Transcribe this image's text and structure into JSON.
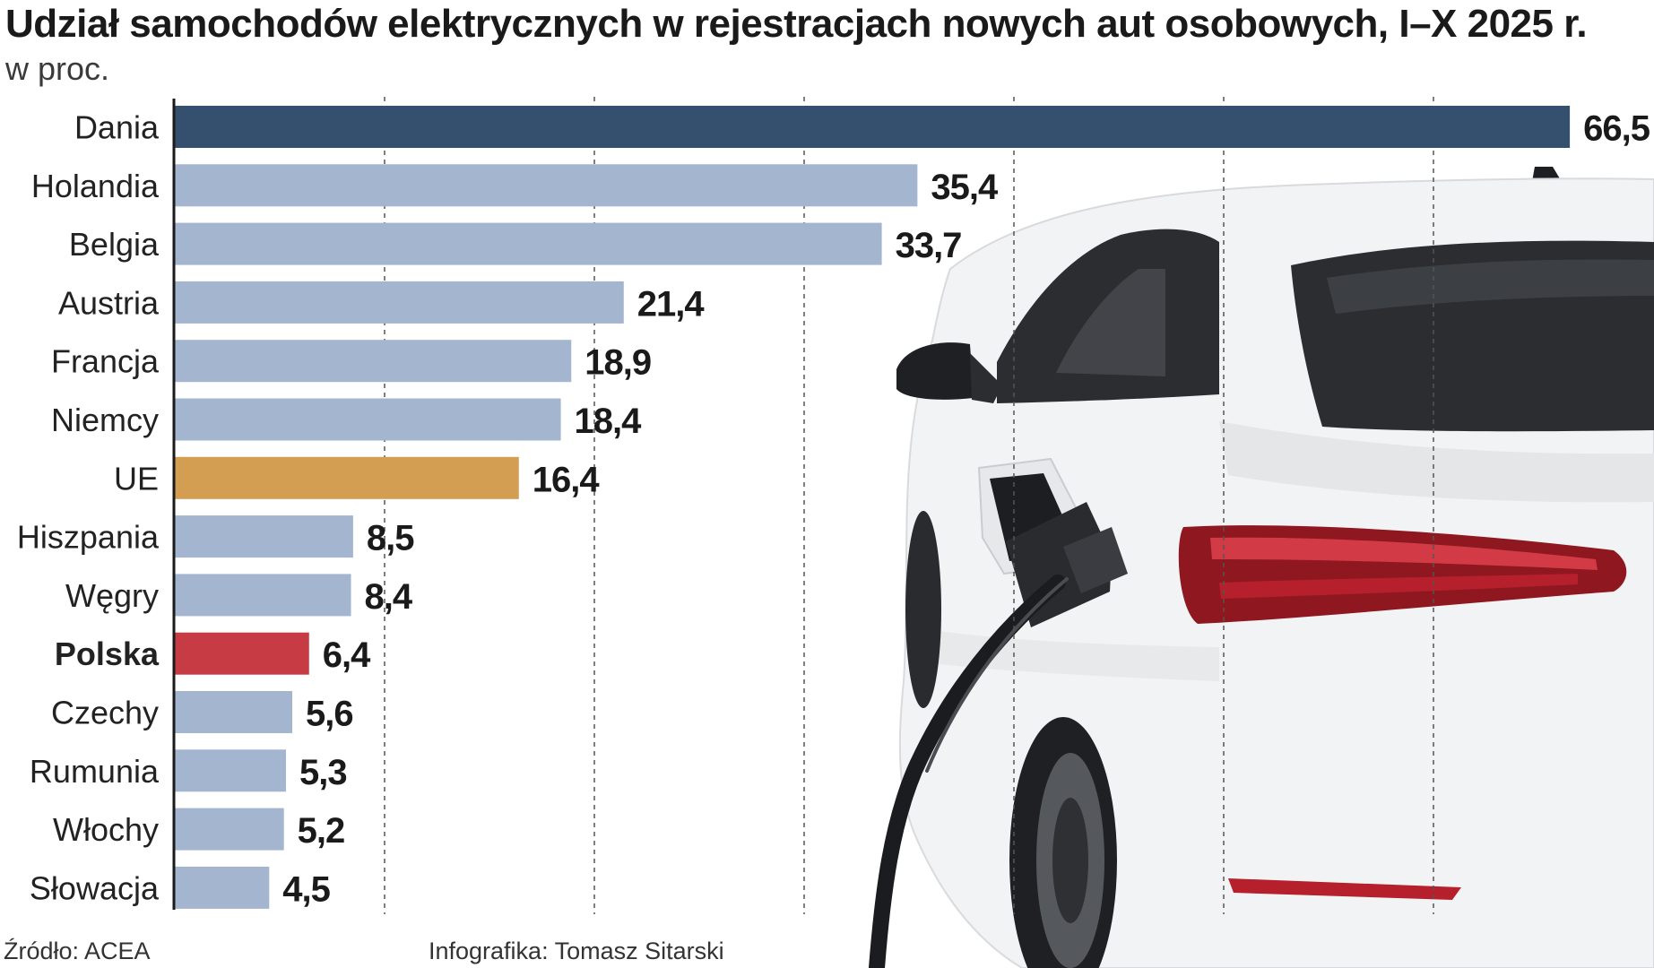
{
  "chart_data": {
    "type": "bar",
    "orientation": "horizontal",
    "title": "Udział samochodów elektrycznych w rejestracjach nowych aut osobowych, I–X 2025 r.",
    "subtitle": "w proc.",
    "categories": [
      "Dania",
      "Holandia",
      "Belgia",
      "Austria",
      "Francja",
      "Niemcy",
      "UE",
      "Hiszpania",
      "Węgry",
      "Polska",
      "Czechy",
      "Rumunia",
      "Włochy",
      "Słowacja"
    ],
    "values": [
      66.5,
      35.4,
      33.7,
      21.4,
      18.9,
      18.4,
      16.4,
      8.5,
      8.4,
      6.4,
      5.6,
      5.3,
      5.2,
      4.5
    ],
    "value_labels": [
      "66,5",
      "35,4",
      "33,7",
      "21,4",
      "18,9",
      "18,4",
      "16,4",
      "8,5",
      "8,4",
      "6,4",
      "5,6",
      "5,3",
      "5,2",
      "4,5"
    ],
    "bar_colors": [
      "#34506e",
      "#a3b5cf",
      "#a3b5cf",
      "#a3b5cf",
      "#a3b5cf",
      "#a3b5cf",
      "#d39d52",
      "#a3b5cf",
      "#a3b5cf",
      "#c73b44",
      "#a3b5cf",
      "#a3b5cf",
      "#a3b5cf",
      "#a3b5cf"
    ],
    "bold_categories": [
      "Polska"
    ],
    "xlim": [
      0,
      70
    ],
    "gridlines": [
      10,
      20,
      30,
      40,
      50,
      60
    ],
    "grid": true,
    "xlabel": "",
    "ylabel": ""
  },
  "footer": {
    "source": "Źródło: ACEA",
    "credit": "Infografika: Tomasz Sitarski"
  },
  "illustration": {
    "subject": "white electric car being charged",
    "body_color": "#f2f3f4",
    "light_color": "#b5202c",
    "glass_color": "#2b2d31"
  }
}
